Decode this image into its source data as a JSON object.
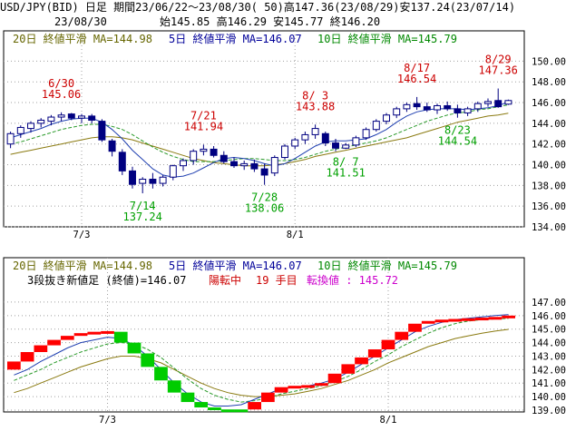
{
  "header": {
    "line1": "USD/JPY(BID) 日足 期間23/06/22～23/08/30( 50)高147.36(23/08/29)安137.24(23/07/14)",
    "date": "23/08/30",
    "ohlc": "始145.85 高146.29 安145.77 終146.20"
  },
  "legend": {
    "ma20": "20日 終値平滑 MA=144.98",
    "ma5": "5日 終値平滑 MA=146.07",
    "ma10": "10日 終値平滑 MA=145.79",
    "three_break": "3段抜き新値足 (終値)=146.07",
    "status": "陽転中",
    "count": "19 手目",
    "reversal": "転換値 : 145.72"
  },
  "colors": {
    "up_body": "#ffffff",
    "down_body": "#000080",
    "ma5": "#1f3fb0",
    "ma10": "#2a9a2a",
    "ma20": "#8a7a10",
    "rise_block": "#ff0000",
    "fall_block": "#00cc00",
    "high_annot": "#cc0000",
    "low_annot": "#00a000",
    "label_blue": "#000099",
    "label_green": "#008800",
    "label_olive": "#666600",
    "magenta": "#cc00cc"
  },
  "chart_data": [
    {
      "type": "candlestick",
      "ylim": [
        134,
        151
      ],
      "yticks": [
        134,
        136,
        138,
        140,
        142,
        144,
        146,
        148,
        150
      ],
      "ytick_labels": [
        "134.00",
        "136.00",
        "138.00",
        "140.00",
        "142.00",
        "144.00",
        "146.00",
        "148.00",
        "150.00"
      ],
      "xtick_labels": [
        "7/3",
        "8/1"
      ],
      "xtick_index": [
        7,
        28
      ],
      "grid": true,
      "candles": [
        {
          "o": 142.0,
          "h": 143.2,
          "l": 141.6,
          "c": 143.0
        },
        {
          "o": 143.0,
          "h": 143.8,
          "l": 142.6,
          "c": 143.6
        },
        {
          "o": 143.5,
          "h": 144.2,
          "l": 143.1,
          "c": 144.0
        },
        {
          "o": 144.0,
          "h": 144.5,
          "l": 143.6,
          "c": 144.3
        },
        {
          "o": 144.2,
          "h": 144.8,
          "l": 143.8,
          "c": 144.6
        },
        {
          "o": 144.6,
          "h": 145.06,
          "l": 144.2,
          "c": 144.8
        },
        {
          "o": 144.9,
          "h": 145.0,
          "l": 144.3,
          "c": 144.5
        },
        {
          "o": 144.5,
          "h": 144.9,
          "l": 144.0,
          "c": 144.7
        },
        {
          "o": 144.7,
          "h": 144.9,
          "l": 144.0,
          "c": 144.3
        },
        {
          "o": 144.2,
          "h": 144.4,
          "l": 142.2,
          "c": 142.4
        },
        {
          "o": 142.3,
          "h": 142.5,
          "l": 140.8,
          "c": 141.3
        },
        {
          "o": 141.2,
          "h": 141.5,
          "l": 139.0,
          "c": 139.4
        },
        {
          "o": 139.4,
          "h": 139.8,
          "l": 137.7,
          "c": 138.1
        },
        {
          "o": 138.2,
          "h": 138.8,
          "l": 137.24,
          "c": 138.6
        },
        {
          "o": 138.6,
          "h": 139.2,
          "l": 137.7,
          "c": 138.2
        },
        {
          "o": 138.2,
          "h": 139.0,
          "l": 137.9,
          "c": 138.8
        },
        {
          "o": 138.8,
          "h": 140.0,
          "l": 138.5,
          "c": 139.9
        },
        {
          "o": 139.9,
          "h": 140.6,
          "l": 139.4,
          "c": 140.4
        },
        {
          "o": 140.4,
          "h": 141.5,
          "l": 140.0,
          "c": 141.3
        },
        {
          "o": 141.3,
          "h": 141.94,
          "l": 140.9,
          "c": 141.5
        },
        {
          "o": 141.5,
          "h": 141.8,
          "l": 140.7,
          "c": 140.9
        },
        {
          "o": 140.9,
          "h": 141.3,
          "l": 140.1,
          "c": 140.3
        },
        {
          "o": 140.3,
          "h": 140.7,
          "l": 139.7,
          "c": 139.9
        },
        {
          "o": 139.9,
          "h": 140.4,
          "l": 139.5,
          "c": 140.1
        },
        {
          "o": 140.1,
          "h": 140.5,
          "l": 139.3,
          "c": 139.6
        },
        {
          "o": 139.6,
          "h": 140.1,
          "l": 138.06,
          "c": 139.0
        },
        {
          "o": 139.2,
          "h": 140.9,
          "l": 138.9,
          "c": 140.7
        },
        {
          "o": 140.7,
          "h": 142.0,
          "l": 140.5,
          "c": 141.8
        },
        {
          "o": 141.8,
          "h": 142.6,
          "l": 141.5,
          "c": 142.4
        },
        {
          "o": 142.4,
          "h": 143.2,
          "l": 142.0,
          "c": 142.9
        },
        {
          "o": 142.9,
          "h": 143.88,
          "l": 142.5,
          "c": 143.5
        },
        {
          "o": 143.0,
          "h": 143.2,
          "l": 141.8,
          "c": 142.1
        },
        {
          "o": 142.1,
          "h": 142.5,
          "l": 141.3,
          "c": 141.6
        },
        {
          "o": 141.6,
          "h": 142.1,
          "l": 141.51,
          "c": 141.9
        },
        {
          "o": 141.9,
          "h": 142.8,
          "l": 141.7,
          "c": 142.6
        },
        {
          "o": 142.6,
          "h": 143.6,
          "l": 142.4,
          "c": 143.4
        },
        {
          "o": 143.4,
          "h": 144.4,
          "l": 143.2,
          "c": 144.2
        },
        {
          "o": 144.2,
          "h": 145.0,
          "l": 143.9,
          "c": 144.8
        },
        {
          "o": 144.8,
          "h": 145.6,
          "l": 144.5,
          "c": 145.4
        },
        {
          "o": 145.4,
          "h": 146.0,
          "l": 145.1,
          "c": 145.8
        },
        {
          "o": 145.9,
          "h": 146.54,
          "l": 145.3,
          "c": 145.6
        },
        {
          "o": 145.6,
          "h": 146.0,
          "l": 145.1,
          "c": 145.3
        },
        {
          "o": 145.3,
          "h": 145.9,
          "l": 144.9,
          "c": 145.7
        },
        {
          "o": 145.7,
          "h": 146.1,
          "l": 145.2,
          "c": 145.4
        },
        {
          "o": 145.4,
          "h": 145.8,
          "l": 144.54,
          "c": 145.0
        },
        {
          "o": 145.0,
          "h": 145.6,
          "l": 144.7,
          "c": 145.4
        },
        {
          "o": 145.4,
          "h": 146.1,
          "l": 145.1,
          "c": 145.9
        },
        {
          "o": 145.9,
          "h": 146.4,
          "l": 145.6,
          "c": 146.1
        },
        {
          "o": 146.2,
          "h": 147.36,
          "l": 145.5,
          "c": 145.6
        },
        {
          "o": 145.85,
          "h": 146.29,
          "l": 145.77,
          "c": 146.2
        }
      ],
      "ma5": [
        142.6,
        142.9,
        143.2,
        143.5,
        143.9,
        144.2,
        144.4,
        144.5,
        144.5,
        144.1,
        143.4,
        142.5,
        141.4,
        140.5,
        139.6,
        139.0,
        138.8,
        138.9,
        139.2,
        139.7,
        140.2,
        140.6,
        140.7,
        140.6,
        140.4,
        140.1,
        139.9,
        140.1,
        140.6,
        141.2,
        141.8,
        142.2,
        142.3,
        142.3,
        142.4,
        142.5,
        142.9,
        143.4,
        144.1,
        144.7,
        145.1,
        145.3,
        145.4,
        145.4,
        145.4,
        145.3,
        145.4,
        145.5,
        145.7,
        146.07
      ],
      "ma10": [
        142.0,
        142.2,
        142.5,
        142.8,
        143.1,
        143.4,
        143.6,
        143.8,
        143.9,
        143.9,
        143.7,
        143.4,
        142.9,
        142.3,
        141.7,
        141.2,
        140.8,
        140.5,
        140.3,
        140.3,
        140.3,
        140.4,
        140.5,
        140.6,
        140.6,
        140.5,
        140.4,
        140.4,
        140.5,
        140.7,
        141.0,
        141.3,
        141.5,
        141.7,
        141.9,
        142.1,
        142.3,
        142.6,
        143.0,
        143.4,
        143.8,
        144.2,
        144.5,
        144.8,
        145.0,
        145.1,
        145.3,
        145.4,
        145.6,
        145.79
      ],
      "ma20": [
        141.0,
        141.2,
        141.4,
        141.6,
        141.8,
        142.0,
        142.2,
        142.4,
        142.6,
        142.7,
        142.7,
        142.6,
        142.4,
        142.1,
        141.8,
        141.5,
        141.2,
        140.9,
        140.6,
        140.4,
        140.2,
        140.1,
        140.0,
        139.9,
        139.9,
        139.9,
        140.0,
        140.1,
        140.3,
        140.5,
        140.8,
        141.0,
        141.2,
        141.4,
        141.6,
        141.8,
        142.0,
        142.2,
        142.4,
        142.6,
        142.9,
        143.2,
        143.5,
        143.8,
        144.1,
        144.3,
        144.5,
        144.7,
        144.8,
        144.98
      ],
      "annotations": [
        {
          "i": 5,
          "kind": "high",
          "date": "6/30",
          "value": "145.06"
        },
        {
          "i": 13,
          "kind": "low",
          "date": "7/14",
          "value": "137.24"
        },
        {
          "i": 19,
          "kind": "high",
          "date": "7/21",
          "value": "141.94"
        },
        {
          "i": 25,
          "kind": "low",
          "date": "7/28",
          "value": "138.06"
        },
        {
          "i": 30,
          "kind": "high",
          "date": "8/ 3",
          "value": "143.88"
        },
        {
          "i": 33,
          "kind": "low",
          "date": "8/ 7",
          "value": "141.51"
        },
        {
          "i": 40,
          "kind": "high",
          "date": "8/17",
          "value": "146.54"
        },
        {
          "i": 44,
          "kind": "low",
          "date": "8/23",
          "value": "144.54"
        },
        {
          "i": 48,
          "kind": "high",
          "date": "8/29",
          "value": "147.36"
        }
      ]
    },
    {
      "type": "three-line-break",
      "ylim": [
        139,
        147.6
      ],
      "yticks": [
        139,
        140,
        141,
        142,
        143,
        144,
        145,
        146,
        147
      ],
      "ytick_labels": [
        "139.00",
        "140.00",
        "141.00",
        "142.00",
        "143.00",
        "144.00",
        "145.00",
        "146.00",
        "147.00"
      ],
      "xtick_labels": [
        "7/3",
        "8/1"
      ],
      "xtick_index": [
        7,
        28
      ],
      "grid": true,
      "blocks": [
        {
          "i": 0,
          "low": 142.0,
          "high": 142.6,
          "dir": "up"
        },
        {
          "i": 1,
          "low": 142.6,
          "high": 143.3,
          "dir": "up"
        },
        {
          "i": 2,
          "low": 143.3,
          "high": 143.8,
          "dir": "up"
        },
        {
          "i": 3,
          "low": 143.8,
          "high": 144.2,
          "dir": "up"
        },
        {
          "i": 4,
          "low": 144.2,
          "high": 144.5,
          "dir": "up"
        },
        {
          "i": 5,
          "low": 144.5,
          "high": 144.7,
          "dir": "up"
        },
        {
          "i": 6,
          "low": 144.7,
          "high": 144.8,
          "dir": "up"
        },
        {
          "i": 7,
          "low": 144.8,
          "high": 144.85,
          "dir": "up"
        },
        {
          "i": 8,
          "low": 144.0,
          "high": 144.8,
          "dir": "down"
        },
        {
          "i": 9,
          "low": 143.2,
          "high": 144.0,
          "dir": "down"
        },
        {
          "i": 10,
          "low": 142.2,
          "high": 143.2,
          "dir": "down"
        },
        {
          "i": 11,
          "low": 141.2,
          "high": 142.2,
          "dir": "down"
        },
        {
          "i": 12,
          "low": 140.3,
          "high": 141.2,
          "dir": "down"
        },
        {
          "i": 13,
          "low": 139.6,
          "high": 140.3,
          "dir": "down"
        },
        {
          "i": 14,
          "low": 139.2,
          "high": 139.6,
          "dir": "down"
        },
        {
          "i": 15,
          "low": 139.05,
          "high": 139.2,
          "dir": "down"
        },
        {
          "i": 16,
          "low": 139.0,
          "high": 139.05,
          "dir": "down"
        },
        {
          "i": 17,
          "low": 139.0,
          "high": 139.05,
          "dir": "down"
        },
        {
          "i": 18,
          "low": 139.05,
          "high": 139.6,
          "dir": "up"
        },
        {
          "i": 19,
          "low": 139.6,
          "high": 140.3,
          "dir": "up"
        },
        {
          "i": 20,
          "low": 140.3,
          "high": 140.7,
          "dir": "up"
        },
        {
          "i": 21,
          "low": 140.7,
          "high": 140.8,
          "dir": "up"
        },
        {
          "i": 22,
          "low": 140.8,
          "high": 140.85,
          "dir": "up"
        },
        {
          "i": 23,
          "low": 140.85,
          "high": 141.0,
          "dir": "up"
        },
        {
          "i": 24,
          "low": 141.0,
          "high": 141.7,
          "dir": "up"
        },
        {
          "i": 25,
          "low": 141.7,
          "high": 142.4,
          "dir": "up"
        },
        {
          "i": 26,
          "low": 142.4,
          "high": 142.9,
          "dir": "up"
        },
        {
          "i": 27,
          "low": 142.9,
          "high": 143.5,
          "dir": "up"
        },
        {
          "i": 28,
          "low": 143.5,
          "high": 144.2,
          "dir": "up"
        },
        {
          "i": 29,
          "low": 144.2,
          "high": 144.8,
          "dir": "up"
        },
        {
          "i": 30,
          "low": 144.8,
          "high": 145.4,
          "dir": "up"
        },
        {
          "i": 31,
          "low": 145.4,
          "high": 145.6,
          "dir": "up"
        },
        {
          "i": 32,
          "low": 145.6,
          "high": 145.7,
          "dir": "up"
        },
        {
          "i": 33,
          "low": 145.7,
          "high": 145.75,
          "dir": "up"
        },
        {
          "i": 34,
          "low": 145.75,
          "high": 145.8,
          "dir": "up"
        },
        {
          "i": 35,
          "low": 145.8,
          "high": 145.85,
          "dir": "up"
        },
        {
          "i": 36,
          "low": 145.85,
          "high": 145.9,
          "dir": "up"
        },
        {
          "i": 37,
          "low": 145.85,
          "high": 146.0,
          "dir": "up"
        }
      ],
      "ma5": [
        141.6,
        142.0,
        142.6,
        143.1,
        143.6,
        144.0,
        144.2,
        144.4,
        144.3,
        143.8,
        143.0,
        142.0,
        141.0,
        140.2,
        139.6,
        139.3,
        139.3,
        139.4,
        139.8,
        140.2,
        140.6,
        140.7,
        140.8,
        141.0,
        141.3,
        141.8,
        142.4,
        143.0,
        143.6,
        144.2,
        144.8,
        145.2,
        145.5,
        145.7,
        145.8,
        145.9,
        146.0,
        146.07
      ],
      "ma10": [
        141.2,
        141.6,
        142.0,
        142.5,
        142.9,
        143.3,
        143.6,
        143.9,
        144.0,
        143.9,
        143.5,
        142.9,
        142.1,
        141.3,
        140.6,
        140.1,
        139.8,
        139.6,
        139.7,
        139.9,
        140.2,
        140.4,
        140.6,
        140.8,
        141.1,
        141.5,
        142.0,
        142.6,
        143.1,
        143.7,
        144.2,
        144.7,
        145.1,
        145.4,
        145.6,
        145.7,
        145.75,
        145.79
      ],
      "ma20": [
        140.3,
        140.6,
        141.0,
        141.4,
        141.8,
        142.2,
        142.5,
        142.8,
        143.0,
        143.0,
        142.8,
        142.5,
        142.0,
        141.5,
        141.0,
        140.6,
        140.3,
        140.1,
        140.0,
        140.0,
        140.1,
        140.2,
        140.4,
        140.6,
        140.9,
        141.2,
        141.6,
        142.0,
        142.5,
        142.9,
        143.3,
        143.7,
        144.0,
        144.3,
        144.5,
        144.7,
        144.85,
        144.98
      ]
    }
  ]
}
